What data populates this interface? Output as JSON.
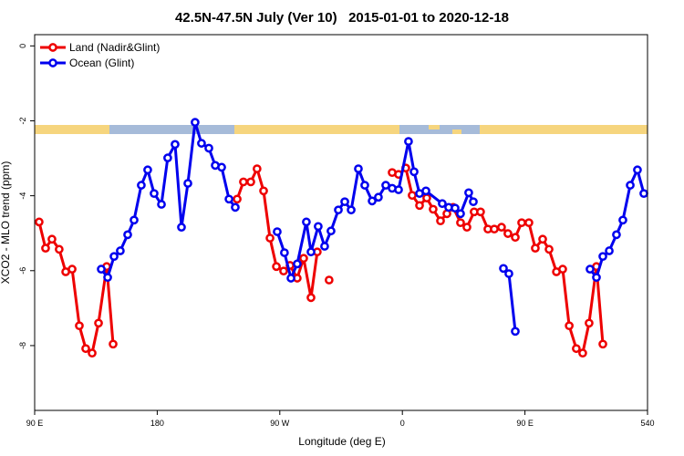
{
  "chart_data": {
    "type": "line",
    "title": "42.5N-47.5N July (Ver 10)   2015-01-01 to 2020-12-18",
    "x_label": "Longitude (deg E)",
    "y_label": "XCO2 - MLO trend (ppm)",
    "xlim": [
      90,
      540
    ],
    "ylim": [
      -9.73,
      0.3
    ],
    "xticks": [
      {
        "value": 90,
        "label": "90 E"
      },
      180,
      {
        "value": 270,
        "label": "90 W"
      },
      {
        "value": 360,
        "label": "0"
      },
      {
        "value": 450,
        "label": "90 E"
      },
      540
    ],
    "yticks": [
      0,
      -2,
      -4,
      -6,
      -8
    ],
    "legend": "top-left",
    "series": [
      {
        "name": "Land (Nadir&Glint)",
        "color": "#ee0000",
        "x": [
          93.3,
          98,
          102.7,
          108,
          112.8,
          117.5,
          122.8,
          127.5,
          132.2,
          136.9,
          142.9,
          147.6,
          null,
          238.7,
          243.3,
          248.7,
          253.3,
          258.1,
          262.8,
          267.5,
          272.8,
          277.5,
          282.8,
          287.5,
          292.9,
          297.5,
          null,
          306.2,
          null,
          352.5,
          357.2,
          362.5,
          367.2,
          372.6,
          377.9,
          382.6,
          388.0,
          392.7,
          397.3,
          402.7,
          407.4,
          412.7,
          417.4,
          422.8,
          427.5,
          432.8,
          437.5,
          442.9,
          447.6,
          452.9,
          457.6,
          463.0,
          467.7,
          473.1,
          477.7,
          482.5,
          487.7,
          492.4,
          497.1,
          502.5,
          507.2
        ],
        "values": [
          -4.7,
          -5.4,
          -5.16,
          -5.43,
          -6.03,
          -5.96,
          -7.47,
          -8.08,
          -8.2,
          -7.4,
          -5.89,
          -7.96,
          null,
          -4.09,
          -3.63,
          -3.63,
          -3.28,
          -3.87,
          -5.13,
          -5.89,
          -6.01,
          -5.86,
          -6.2,
          -5.67,
          -6.72,
          -5.5,
          null,
          -6.25,
          null,
          -3.38,
          -3.43,
          -3.26,
          -3.99,
          -4.26,
          -4.06,
          -4.36,
          -4.67,
          -4.48,
          -4.31,
          -4.72,
          -4.84,
          -4.43,
          -4.43,
          -4.89,
          -4.89,
          -4.84,
          -5.01,
          -5.11,
          -4.72,
          -4.72,
          -5.4,
          -5.16,
          -5.43,
          -6.03,
          -5.96,
          -7.47,
          -8.08,
          -8.2,
          -7.4,
          -5.89,
          -7.96
        ]
      },
      {
        "name": "Ocean (Glint)",
        "color": "#0000ee",
        "x": [
          138.9,
          143.6,
          148.3,
          152.9,
          158.3,
          163.0,
          168.3,
          173.0,
          177.7,
          183.1,
          187.7,
          193.1,
          197.8,
          202.5,
          207.8,
          212.5,
          217.9,
          222.6,
          227.3,
          232.7,
          237.3,
          null,
          268.1,
          273.4,
          278.2,
          282.8,
          289.5,
          292.9,
          298.2,
          302.9,
          307.6,
          313.0,
          317.7,
          322.4,
          327.7,
          332.4,
          337.8,
          342.4,
          347.8,
          352.5,
          357.2,
          364.5,
          368.6,
          372.6,
          377.3,
          389.3,
          394.0,
          398.7,
          402.7,
          408.7,
          412.1,
          null,
          434.2,
          438.2,
          442.9,
          null,
          497.8,
          502.5,
          507.2,
          511.9,
          517.2,
          521.9,
          527.3,
          532.6,
          537.3
        ],
        "values": [
          -5.96,
          -6.18,
          -5.62,
          -5.47,
          -5.04,
          -4.65,
          -3.72,
          -3.31,
          -3.94,
          -4.23,
          -2.99,
          -2.63,
          -4.84,
          -3.67,
          -2.04,
          -2.6,
          -2.73,
          -3.19,
          -3.24,
          -4.09,
          -4.31,
          null,
          -4.96,
          -5.52,
          -6.2,
          -5.82,
          -4.7,
          -5.5,
          -4.82,
          -5.35,
          -4.94,
          -4.38,
          -4.16,
          -4.38,
          -3.28,
          -3.72,
          -4.14,
          -4.04,
          -3.72,
          -3.8,
          -3.84,
          -2.55,
          -3.36,
          -3.94,
          -3.87,
          -4.21,
          -4.31,
          -4.33,
          -4.48,
          -3.92,
          -4.16,
          null,
          -5.94,
          -6.08,
          -7.62,
          null,
          -5.96,
          -6.18,
          -5.62,
          -5.47,
          -5.04,
          -4.65,
          -3.72,
          -3.31,
          -3.94
        ]
      }
    ]
  }
}
